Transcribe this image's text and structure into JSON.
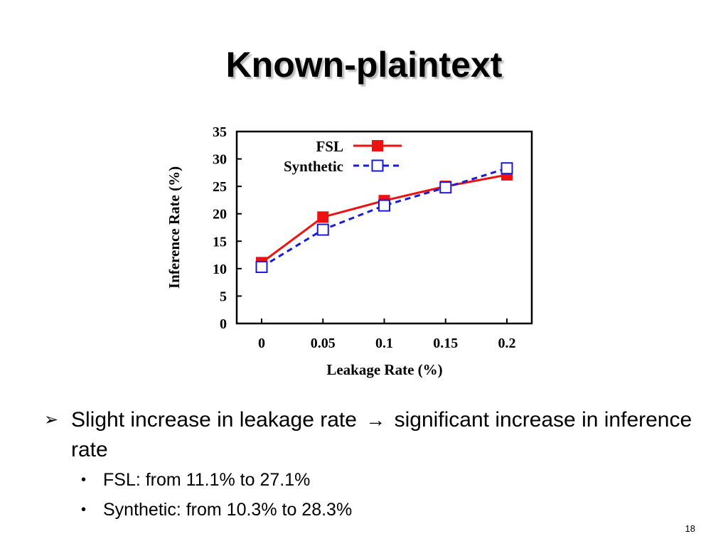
{
  "slide": {
    "title": "Known-plaintext",
    "page_number": "18"
  },
  "bullets": {
    "main_marker": "➢",
    "main_text_part1": "Slight increase in leakage rate",
    "arrow": "→",
    "main_text_part2": "significant increase in inference rate",
    "sub_marker": "•",
    "sub_items": [
      "FSL: from 11.1% to 27.1%",
      "Synthetic: from 10.3% to 28.3%"
    ]
  },
  "chart_data": {
    "type": "line",
    "xlabel": "Leakage Rate (%)",
    "ylabel": "Inference Rate (%)",
    "categories": [
      "0",
      "0.05",
      "0.1",
      "0.15",
      "0.2"
    ],
    "ylim": [
      0,
      35
    ],
    "yticks": [
      "0",
      "5",
      "10",
      "15",
      "20",
      "25",
      "30",
      "35"
    ],
    "legend_position": "top-left",
    "grid": false,
    "series": [
      {
        "name": "FSL",
        "values": [
          11.1,
          19.4,
          22.4,
          25.0,
          27.1
        ],
        "color": "#ee1111",
        "marker": "filled-square",
        "line": "solid"
      },
      {
        "name": "Synthetic",
        "values": [
          10.3,
          17.1,
          21.5,
          24.8,
          28.3
        ],
        "color": "#1a1ad6",
        "marker": "open-square",
        "line": "dashed"
      }
    ]
  }
}
